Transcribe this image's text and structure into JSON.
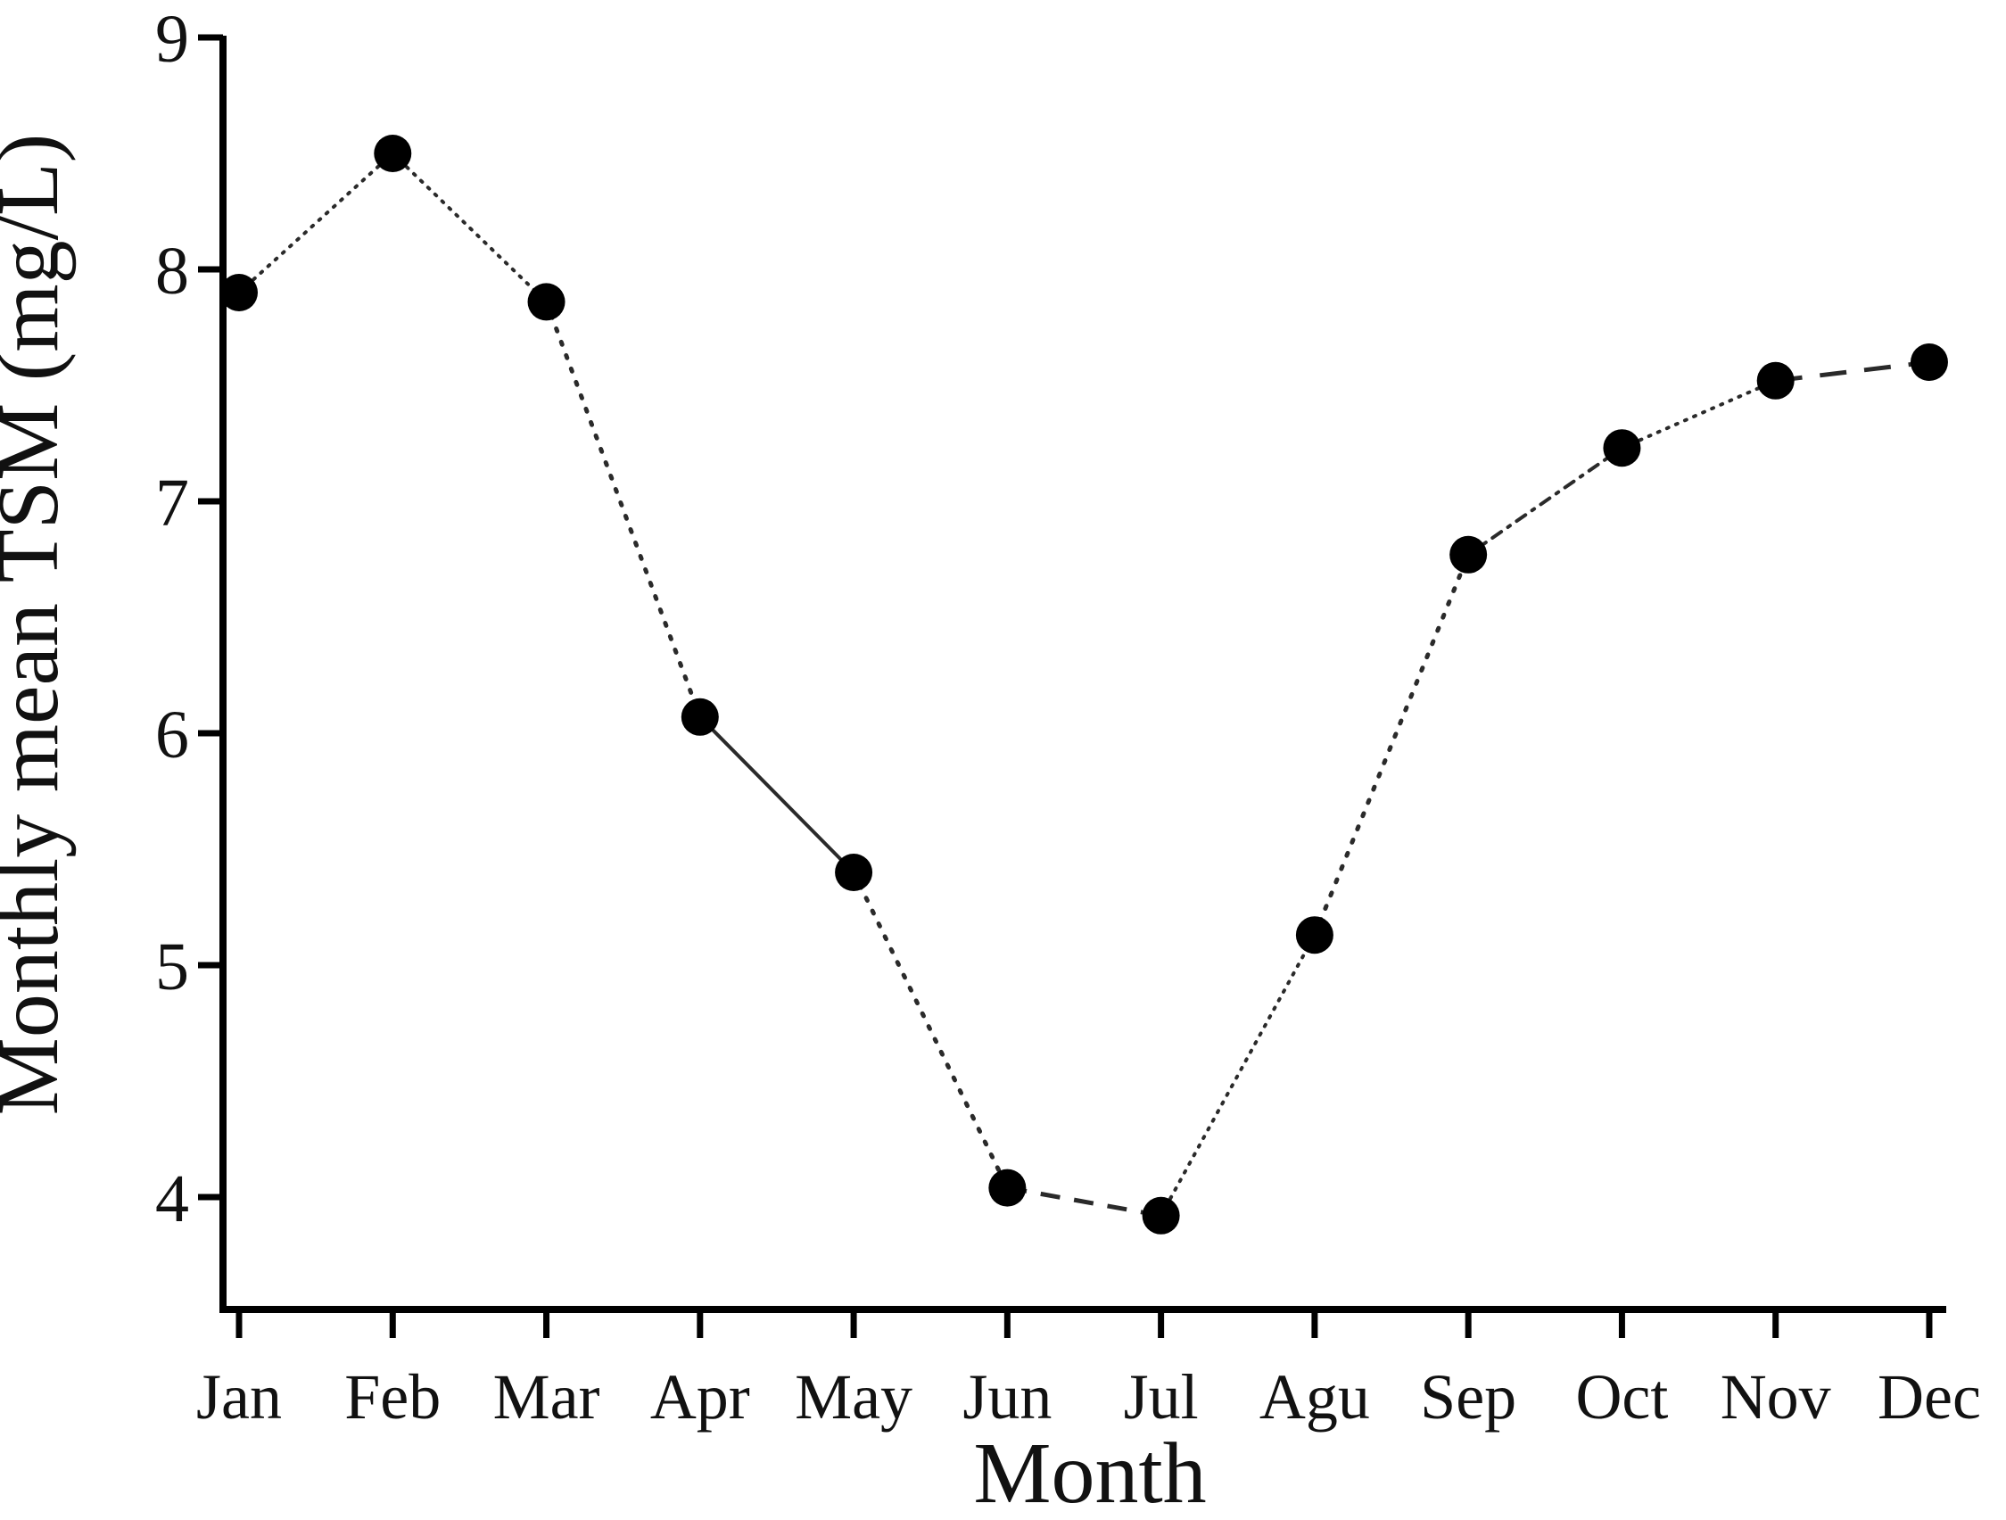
{
  "chart_data": {
    "type": "line",
    "title": "",
    "xlabel": "Month",
    "ylabel": "Monthly mean TSM (mg/L)",
    "categories": [
      "Jan",
      "Feb",
      "Mar",
      "Apr",
      "May",
      "Jun",
      "Jul",
      "Agu",
      "Sep",
      "Oct",
      "Nov",
      "Dec"
    ],
    "series": [
      {
        "name": "Monthly mean TSM",
        "values": [
          7.9,
          8.5,
          7.86,
          6.07,
          5.4,
          4.04,
          3.92,
          5.13,
          6.77,
          7.23,
          7.52,
          7.6
        ]
      }
    ],
    "yticks": [
      4,
      5,
      6,
      7,
      8,
      9
    ],
    "ylim": [
      3.5,
      9
    ],
    "grid": false,
    "legend": "none",
    "marker": {
      "shape": "filled-circle",
      "radius": 21,
      "fill": "#000000"
    },
    "line_color": "#2a2a2a",
    "axis_color": "#000000",
    "segment_styles": [
      "fine-dotted",
      "fine-dotted",
      "dotted",
      "solid",
      "dotted",
      "dashed",
      "fine-dotted",
      "dotted",
      "dash-dot",
      "fine-dotted",
      "long-dashed"
    ]
  }
}
